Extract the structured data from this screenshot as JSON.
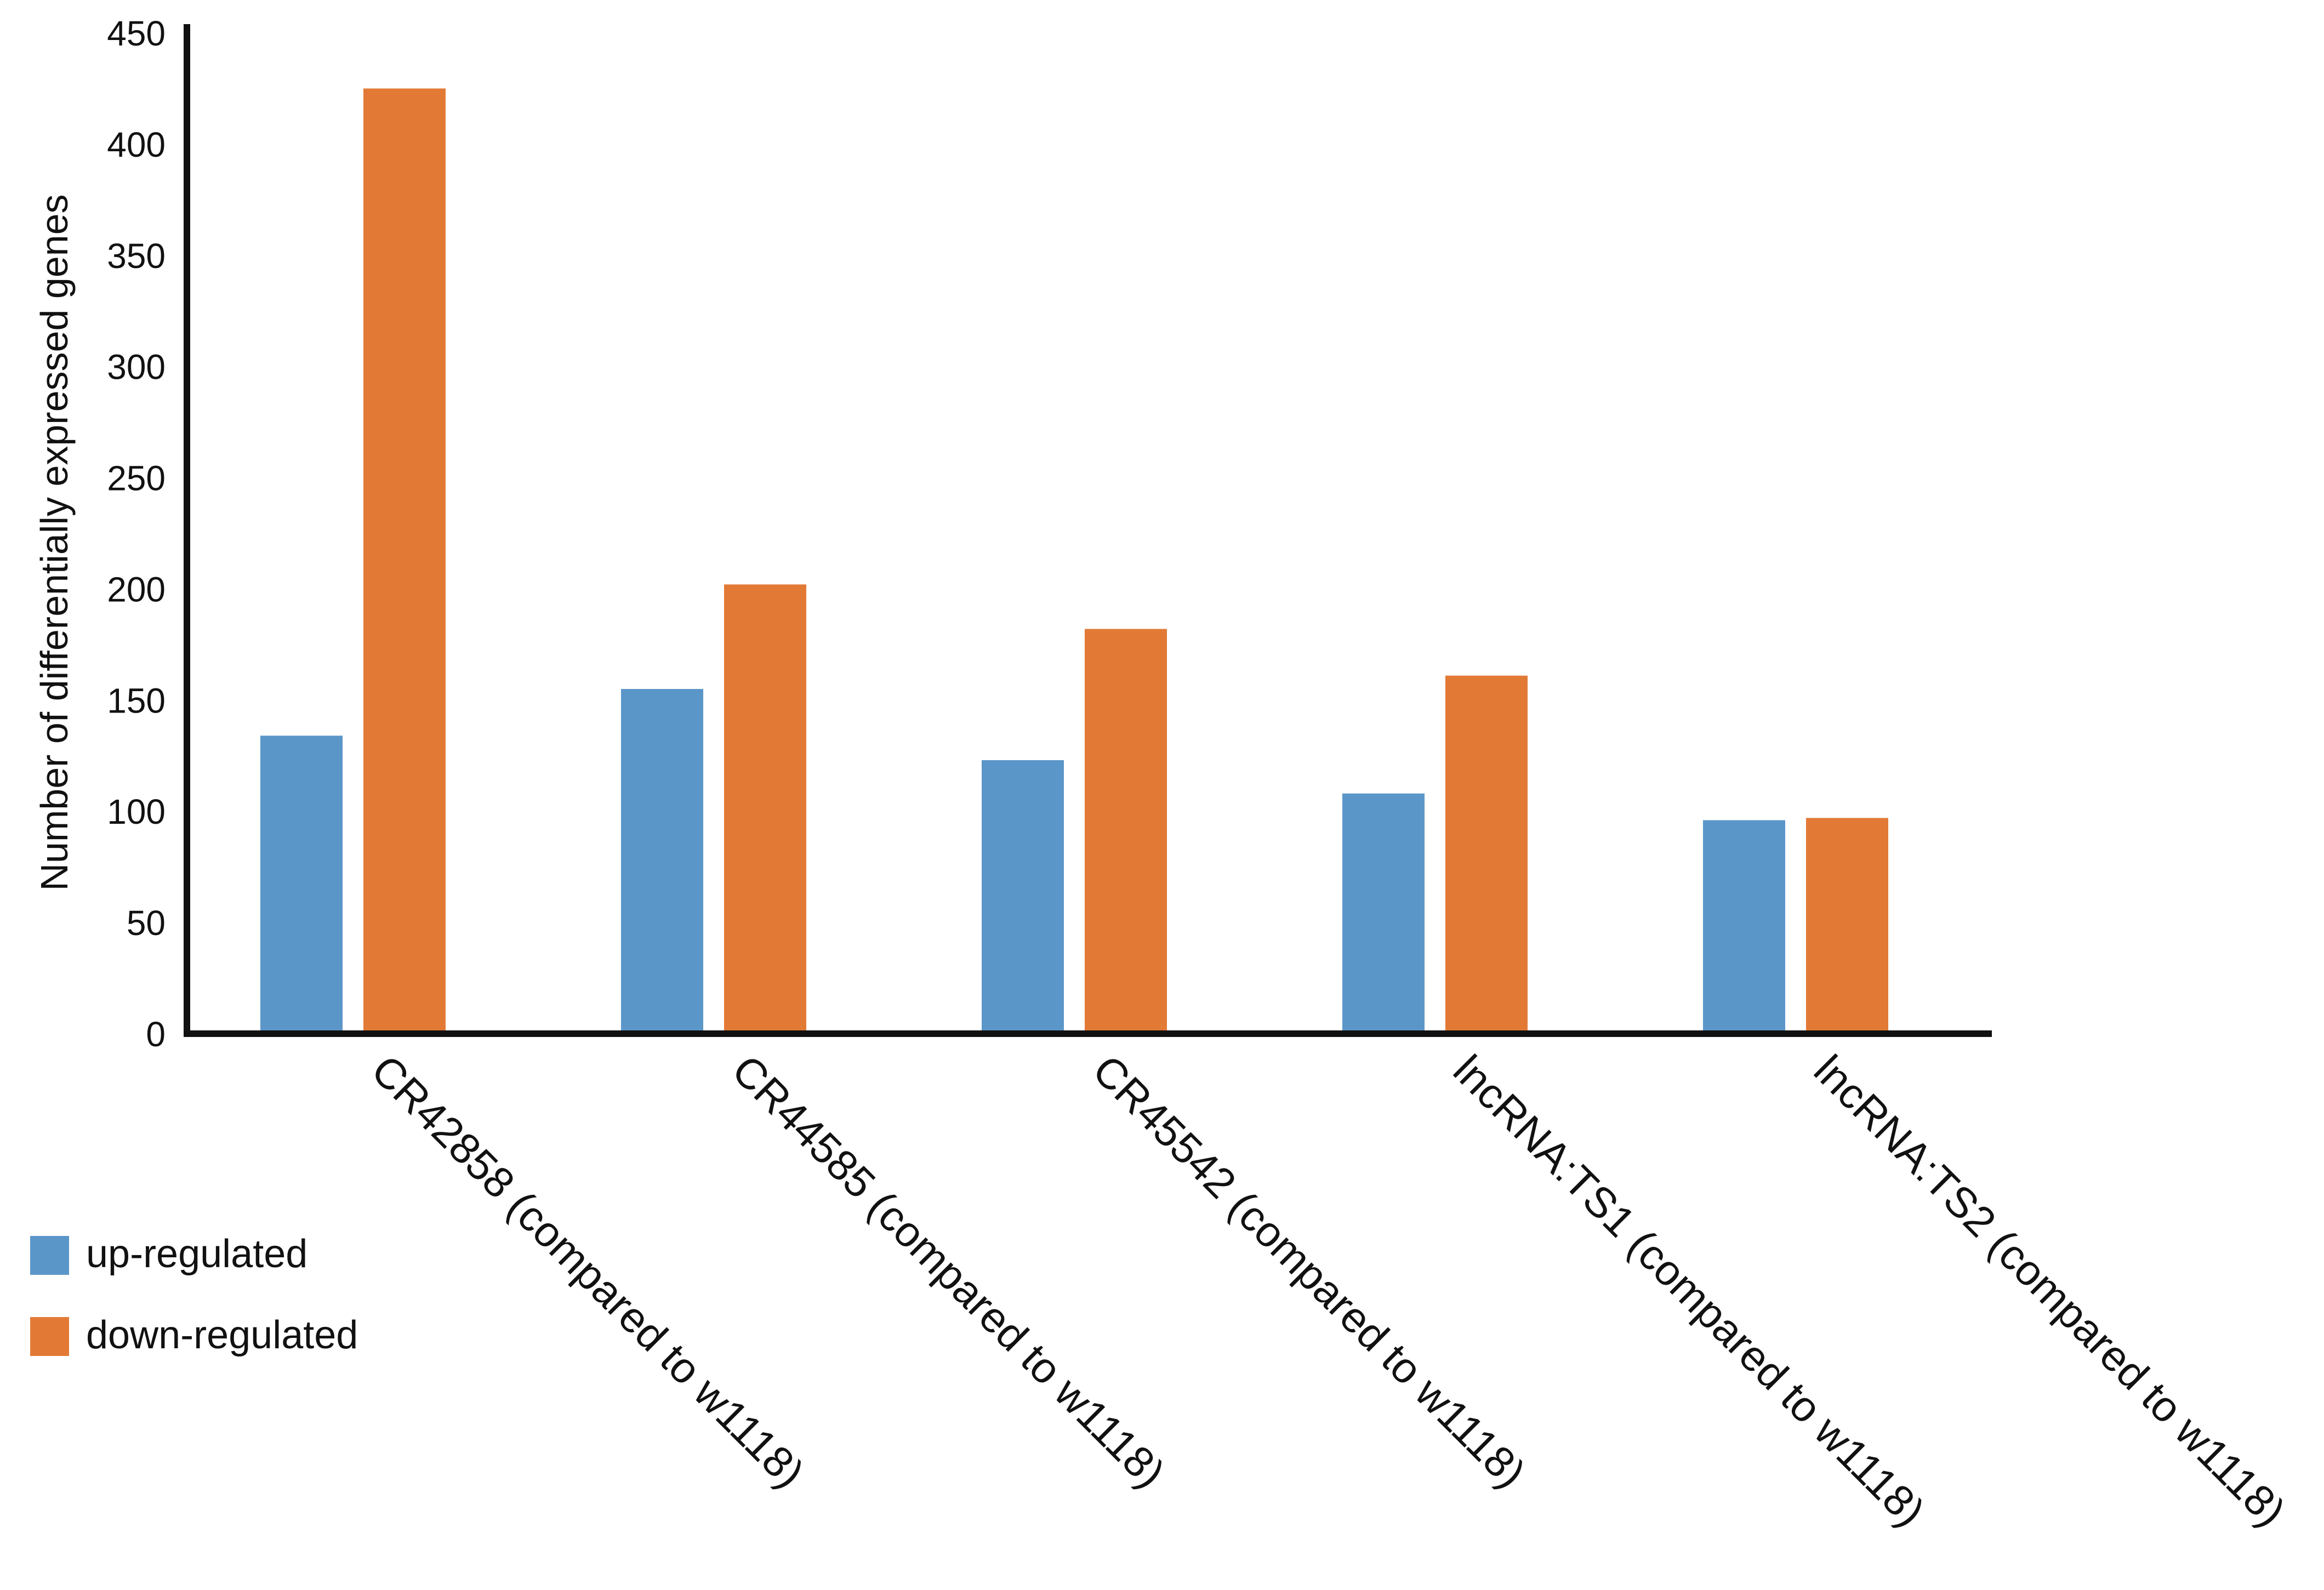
{
  "chart_data": {
    "type": "bar",
    "title": "",
    "xlabel": "",
    "ylabel": "Number of differentially expressed genes",
    "ylim": [
      0,
      450
    ],
    "yticks": [
      0,
      50,
      100,
      150,
      200,
      250,
      300,
      350,
      400,
      450
    ],
    "categories": [
      "CR42858 (compared to w1118)",
      "CR44585 (compared to w1118)",
      "CR45542 (compared to w1118)",
      "lncRNA:TS1 (compared to w1118)",
      "lncRNA:TS2 (compared to w1118)"
    ],
    "series": [
      {
        "name": "up-regulated",
        "color": "#5b96c9",
        "values": [
          134,
          155,
          123,
          108,
          96
        ]
      },
      {
        "name": "down-regulated",
        "color": "#e27a36",
        "values": [
          425,
          202,
          182,
          161,
          97
        ]
      }
    ],
    "grid": false,
    "legend": "bottom-left"
  }
}
